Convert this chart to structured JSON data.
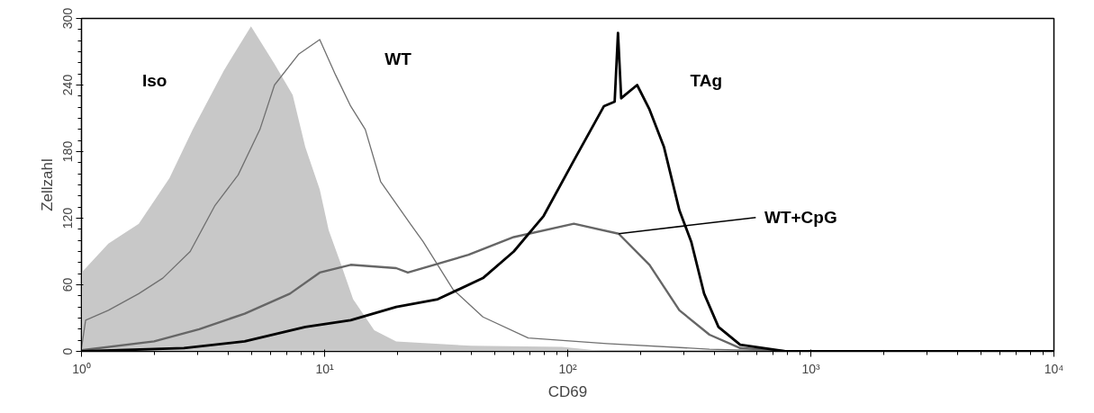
{
  "chart_data": {
    "type": "line",
    "xlabel": "CD69",
    "ylabel": "Zellzahl",
    "log": "x",
    "xlim": [
      1,
      10000
    ],
    "ylim": [
      0,
      300
    ],
    "xticks": [
      {
        "value": 1,
        "label": "10⁰"
      },
      {
        "value": 10,
        "label": "10¹"
      },
      {
        "value": 100,
        "label": "10²"
      },
      {
        "value": 1000,
        "label": "10³"
      },
      {
        "value": 10000,
        "label": "10⁴"
      }
    ],
    "yticks": [
      0,
      60,
      120,
      180,
      240,
      300
    ],
    "grid": false,
    "legend": false,
    "series": [
      {
        "type": "area",
        "name": "Iso",
        "color": "#c8c8c8",
        "x": [
          1,
          1.29,
          1.72,
          2.3,
          2.87,
          3.85,
          4.98,
          6.22,
          7.39,
          8.33,
          9.55,
          10.4,
          11.7,
          13.1,
          16,
          19.7,
          40.1,
          94.5,
          145,
          10000
        ],
        "values": [
          71,
          97,
          115,
          156,
          200,
          253,
          293,
          259,
          231,
          184,
          146,
          109,
          78,
          47,
          19,
          9,
          5,
          4,
          0,
          0
        ]
      },
      {
        "name": "WT",
        "color": "#707070",
        "x": [
          1,
          1.04,
          1.29,
          1.72,
          2.16,
          2.8,
          3.53,
          4.41,
          5.42,
          6.22,
          7.84,
          9.55,
          11.1,
          12.8,
          14.7,
          17,
          22.5,
          25.4,
          33.7,
          44.8,
          68.8,
          145,
          383,
          807,
          10000
        ],
        "values": [
          3,
          28,
          37,
          52,
          66,
          90,
          131,
          159,
          200,
          240,
          268,
          281,
          249,
          221,
          200,
          153,
          115,
          99,
          56,
          31,
          12,
          7,
          2,
          0,
          0
        ]
      },
      {
        "name": "WT+CpG",
        "color": "#666666",
        "x": [
          1,
          1.99,
          3.05,
          4.69,
          7.2,
          9.55,
          12.8,
          19.7,
          22,
          39.1,
          60,
          106,
          162,
          217,
          288,
          383,
          512,
          807,
          10000
        ],
        "values": [
          1,
          9,
          20,
          34,
          52,
          71,
          78,
          75,
          71,
          87,
          103,
          115,
          106,
          78,
          37,
          15,
          3,
          0,
          0
        ]
      },
      {
        "name": "TAg",
        "color": "#000000",
        "x": [
          1,
          2.64,
          4.69,
          8.33,
          12.8,
          19.7,
          29.2,
          44.8,
          60,
          79.6,
          106,
          141,
          156,
          161,
          166,
          172,
          193,
          217,
          249,
          288,
          322,
          364,
          417,
          512,
          787,
          10000
        ],
        "values": [
          0,
          3,
          9,
          22,
          28,
          40,
          47,
          66,
          90,
          122,
          172,
          221,
          225,
          287,
          228,
          231,
          240,
          218,
          184,
          127,
          99,
          52,
          22,
          6,
          0,
          0
        ]
      }
    ]
  }
}
